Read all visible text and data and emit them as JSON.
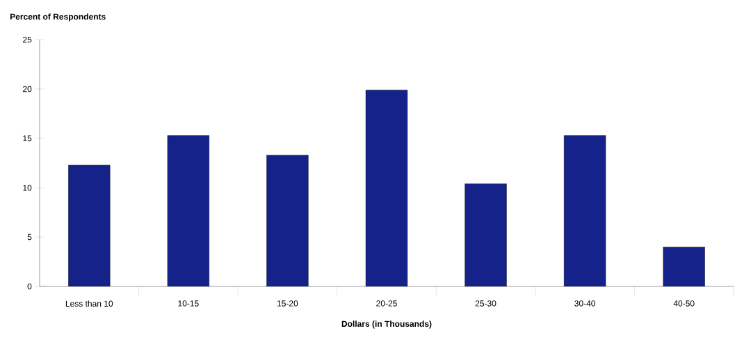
{
  "chart_data": {
    "type": "bar",
    "title": "Percent of Respondents",
    "xlabel": "Dollars (in Thousands)",
    "categories": [
      "Less than 10",
      "10-15",
      "15-20",
      "20-25",
      "25-30",
      "30-40",
      "40-50"
    ],
    "values": [
      12.3,
      15.3,
      13.3,
      19.9,
      10.4,
      15.3,
      4.0
    ],
    "color": "#14228a",
    "ylim": [
      0,
      25
    ],
    "yticks": [
      0,
      5,
      10,
      15,
      20,
      25
    ]
  }
}
